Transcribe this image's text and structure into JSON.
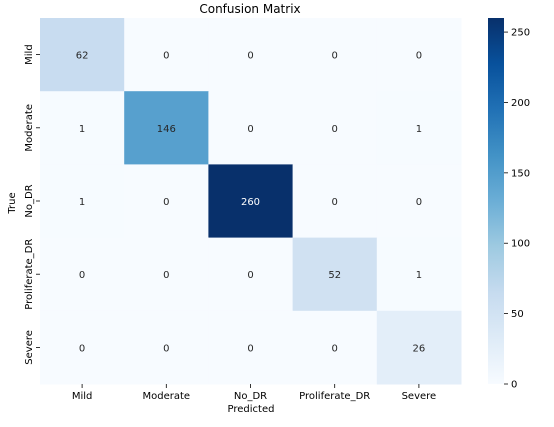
{
  "chart_data": {
    "type": "heatmap",
    "title": "Confusion Matrix",
    "xlabel": "Predicted",
    "ylabel": "True",
    "x_categories": [
      "Mild",
      "Moderate",
      "No_DR",
      "Proliferate_DR",
      "Severe"
    ],
    "y_categories": [
      "Mild",
      "Moderate",
      "No_DR",
      "Proliferate_DR",
      "Severe"
    ],
    "values": [
      [
        62,
        0,
        0,
        0,
        0
      ],
      [
        1,
        146,
        0,
        0,
        1
      ],
      [
        1,
        0,
        260,
        0,
        0
      ],
      [
        0,
        0,
        0,
        52,
        1
      ],
      [
        0,
        0,
        0,
        0,
        26
      ]
    ],
    "colorbar": {
      "min": 0,
      "max": 260,
      "ticks": [
        0,
        50,
        100,
        150,
        200,
        250
      ]
    },
    "colormap": "Blues",
    "colors": {
      "low": "#f7fbff",
      "high": "#08306b"
    }
  }
}
